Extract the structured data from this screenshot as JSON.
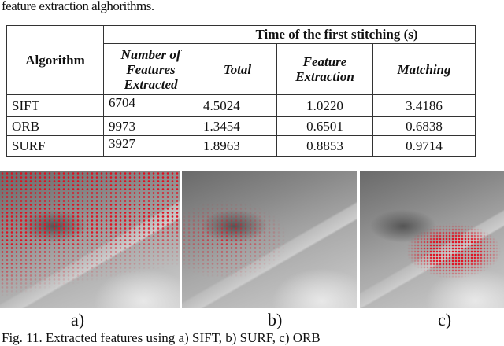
{
  "intro_text": "feature extraction alghorithms.",
  "table": {
    "group_header": "Time of the first stitching (s)",
    "headers": [
      "Algorithm",
      "Number of Features Extracted",
      "Total",
      "Feature Extraction",
      "Matching"
    ],
    "rows": [
      [
        "SIFT",
        "6704",
        "4.5024",
        "1.0220",
        "3.4186"
      ],
      [
        "ORB",
        "9973",
        "1.3454",
        "0.6501",
        "0.6838"
      ],
      [
        "SURF",
        "3927",
        "1.8963",
        "0.8853",
        "0.9714"
      ]
    ]
  },
  "figure": {
    "panels": [
      {
        "label": "a)"
      },
      {
        "label": "b)"
      },
      {
        "label": "c)"
      }
    ],
    "caption": "Fig. 11. Extracted features using a) SIFT, b) SURF, c) ORB",
    "marker_color": "#e01020"
  }
}
